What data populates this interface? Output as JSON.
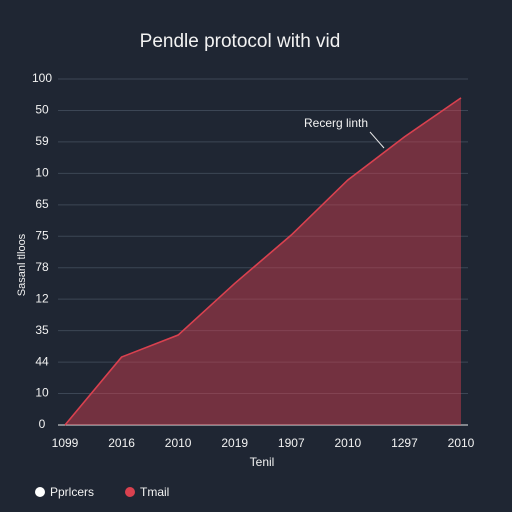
{
  "chart_data": {
    "type": "area",
    "title": "Pendle protocol with vid",
    "x_label": "Tenil",
    "y_label": "Sasanl tlloos",
    "annotation": "Recerg linth",
    "categories": [
      "1099",
      "2016",
      "2010",
      "2019",
      "1907",
      "2010",
      "1297",
      "2010"
    ],
    "series": [
      {
        "name": "Pprlcers",
        "color": "#ffffff",
        "values": [
          null,
          null,
          null,
          null,
          null,
          null,
          null,
          null
        ]
      },
      {
        "name": "Tmail",
        "color": "#d9414f",
        "values": [
          0,
          2.16,
          2.86,
          4.5,
          6.04,
          7.79,
          9.16,
          10.4
        ]
      }
    ],
    "ylim": [
      0,
      11
    ],
    "yticks": [
      0,
      {
        "value": 1,
        "label": "10"
      },
      {
        "value": 2,
        "label": "44"
      },
      {
        "value": 3,
        "label": "35"
      },
      {
        "value": 4,
        "label": "12"
      },
      {
        "value": 5,
        "label": "78"
      },
      {
        "value": 6,
        "label": "75"
      },
      {
        "value": 7,
        "label": "65"
      },
      {
        "value": 8,
        "label": "10"
      },
      {
        "value": 9,
        "label": "59"
      },
      {
        "value": 10,
        "label": "50"
      },
      {
        "value": 11,
        "label": "100"
      }
    ],
    "grid": true
  }
}
